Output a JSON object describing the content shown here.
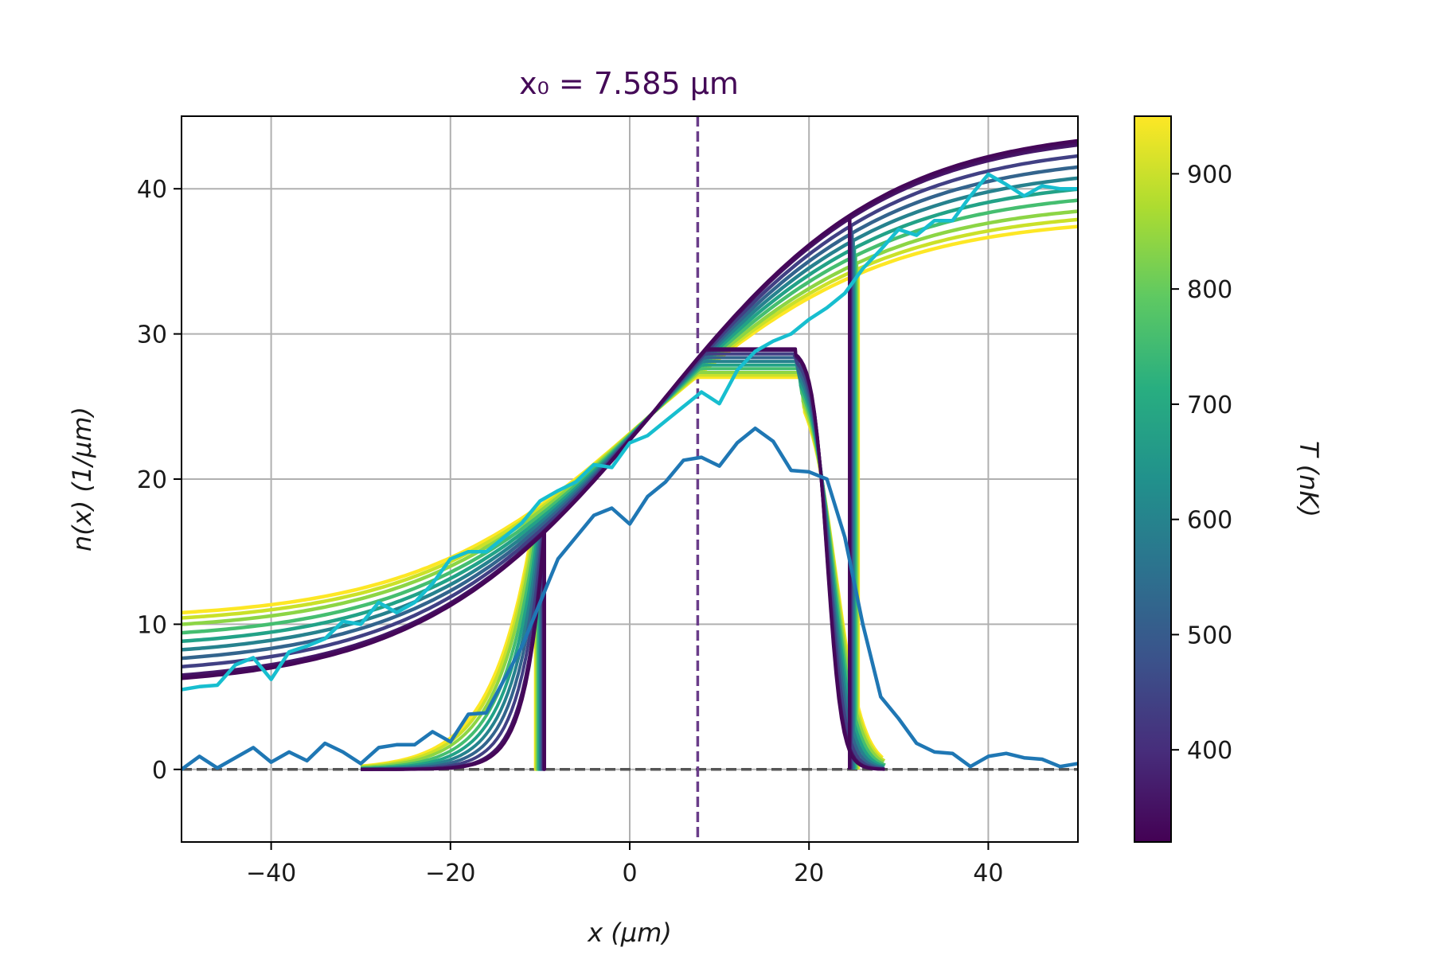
{
  "chart_data": {
    "type": "line",
    "title": "x₀ = 7.585 μm",
    "xlabel": "x   (μm)",
    "ylabel": "n(x)   (1/μm)",
    "xlim": [
      -50,
      50
    ],
    "ylim": [
      -5,
      45
    ],
    "xticks": [
      -40,
      -20,
      0,
      20,
      40
    ],
    "yticks": [
      0,
      10,
      20,
      30,
      40
    ],
    "xtick_labels": [
      "−40",
      "−20",
      "0",
      "20",
      "40"
    ],
    "ytick_labels": [
      "0",
      "10",
      "20",
      "30",
      "40"
    ],
    "grid": true,
    "reference_lines": {
      "vertical_dashed_x": 7.585,
      "horizontal_dashed_y": 0
    },
    "colorbar": {
      "label": "T   (nK)",
      "range": [
        320,
        950
      ],
      "ticks": [
        400,
        500,
        600,
        700,
        800,
        900
      ],
      "tick_labels": [
        "400",
        "500",
        "600",
        "700",
        "800",
        "900"
      ],
      "colormap": "viridis"
    },
    "model_series_temperatures_nK": [
      330,
      345,
      360,
      440,
      520,
      600,
      680,
      760,
      840,
      900,
      950
    ],
    "smooth_model_params": {
      "inflection_x": 2.5,
      "inflection_y": 24.5,
      "low_T_ends": [
        6.2,
        43.4
      ],
      "high_T_ends": [
        10.8,
        37.4
      ]
    },
    "truncated_model_params": {
      "low_T_edges": [
        -9.5,
        24.5
      ],
      "high_T_edges": [
        -10.5,
        25.5
      ],
      "low_T_peak": 29.0,
      "high_T_peak": 27.0,
      "tail_ends": [
        -30,
        28.5
      ]
    },
    "series": [
      {
        "color": "#17becf",
        "x": [
          -50,
          -48,
          -46,
          -44,
          -42,
          -40,
          -38,
          -36,
          -34,
          -32,
          -30,
          -28,
          -26,
          -24,
          -22,
          -20,
          -18,
          -16,
          -14,
          -12,
          -10,
          -8,
          -6,
          -4,
          -2,
          0,
          2,
          4,
          6,
          8,
          10,
          12,
          14,
          16,
          18,
          20,
          22,
          24,
          26,
          28,
          30,
          32,
          34,
          36,
          38,
          40,
          42,
          44,
          46,
          48,
          50
        ],
        "y": [
          5.5,
          5.7,
          5.8,
          7.2,
          7.7,
          6.2,
          8.1,
          8.5,
          9.0,
          10.2,
          10.0,
          11.5,
          10.8,
          11.5,
          12.8,
          14.5,
          15.0,
          15.0,
          16.0,
          17.0,
          18.5,
          19.2,
          19.8,
          21.0,
          20.8,
          22.5,
          23.0,
          24.0,
          25.0,
          26.0,
          25.2,
          27.5,
          28.8,
          29.5,
          30.0,
          31.0,
          31.8,
          32.8,
          34.5,
          35.8,
          37.2,
          36.8,
          37.8,
          37.8,
          39.5,
          41.0,
          40.3,
          39.5,
          40.2,
          40.0,
          40.0
        ]
      },
      {
        "color": "#1f77b4",
        "x": [
          -50,
          -48,
          -46,
          -44,
          -42,
          -40,
          -38,
          -36,
          -34,
          -32,
          -30,
          -28,
          -26,
          -24,
          -22,
          -20,
          -18,
          -16,
          -14,
          -12,
          -10,
          -8,
          -6,
          -4,
          -2,
          0,
          2,
          4,
          6,
          8,
          10,
          12,
          14,
          16,
          18,
          20,
          22,
          24,
          26,
          28,
          30,
          32,
          34,
          36,
          38,
          40,
          42,
          44,
          46,
          48,
          50
        ],
        "y": [
          0.0,
          0.9,
          0.1,
          0.8,
          1.5,
          0.5,
          1.2,
          0.6,
          1.8,
          1.2,
          0.4,
          1.5,
          1.7,
          1.7,
          2.6,
          1.9,
          3.8,
          3.9,
          6.2,
          8.5,
          11.5,
          14.5,
          16.0,
          17.5,
          18.0,
          16.9,
          18.8,
          19.8,
          21.3,
          21.5,
          20.9,
          22.5,
          23.5,
          22.6,
          20.6,
          20.5,
          20.0,
          16.0,
          10.0,
          5.0,
          3.5,
          1.8,
          1.2,
          1.1,
          0.2,
          0.9,
          1.1,
          0.8,
          0.7,
          0.2,
          0.4
        ]
      }
    ]
  }
}
